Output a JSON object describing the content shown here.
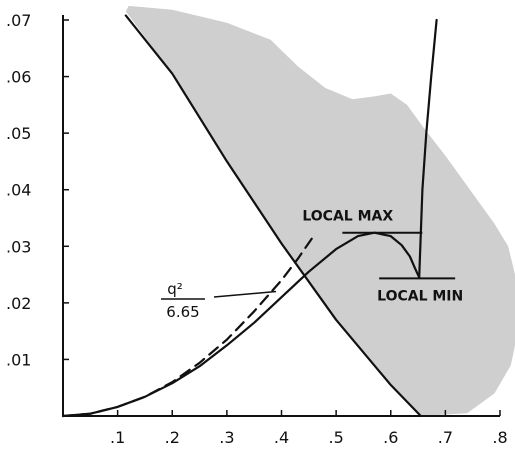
{
  "chart_data": {
    "type": "line",
    "title": "",
    "xlabel": "",
    "ylabel": "",
    "xlim": [
      0,
      0.8
    ],
    "ylim": [
      0,
      0.07
    ],
    "grid": false,
    "x_ticks": [
      ".1",
      ".2",
      ".3",
      ".4",
      ".5",
      ".6",
      ".7",
      ".8"
    ],
    "y_ticks": [
      ".01",
      ".02",
      ".03",
      ".04",
      ".05",
      ".06",
      ".07"
    ],
    "shaded_region": {
      "color": "#cfcfcf",
      "points": [
        [
          0.12,
          0.0725
        ],
        [
          0.2,
          0.0718
        ],
        [
          0.3,
          0.0695
        ],
        [
          0.38,
          0.0665
        ],
        [
          0.43,
          0.0618
        ],
        [
          0.48,
          0.058
        ],
        [
          0.53,
          0.056
        ],
        [
          0.57,
          0.0565
        ],
        [
          0.6,
          0.057
        ],
        [
          0.63,
          0.055
        ],
        [
          0.66,
          0.051
        ],
        [
          0.7,
          0.046
        ],
        [
          0.73,
          0.042
        ],
        [
          0.76,
          0.038
        ],
        [
          0.79,
          0.034
        ],
        [
          0.815,
          0.03
        ],
        [
          0.835,
          0.022
        ],
        [
          0.835,
          0.016
        ],
        [
          0.82,
          0.009
        ],
        [
          0.79,
          0.004
        ],
        [
          0.74,
          0.0005
        ],
        [
          0.655,
          0
        ],
        [
          0.6,
          0.0055
        ],
        [
          0.5,
          0.017
        ],
        [
          0.4,
          0.0305
        ],
        [
          0.3,
          0.045
        ],
        [
          0.2,
          0.0605
        ],
        [
          0.115,
          0.0715
        ]
      ]
    },
    "series": [
      {
        "style": "solid",
        "points": [
          [
            0.115,
            0.0708
          ],
          [
            0.2,
            0.0605
          ],
          [
            0.3,
            0.045
          ],
          [
            0.4,
            0.0305
          ],
          [
            0.5,
            0.017
          ],
          [
            0.6,
            0.0055
          ],
          [
            0.655,
            0
          ]
        ]
      },
      {
        "style": "dashed",
        "points": [
          [
            0.0,
            0.0
          ],
          [
            0.05,
            0.0004
          ],
          [
            0.1,
            0.0016
          ],
          [
            0.15,
            0.0034
          ],
          [
            0.2,
            0.006
          ],
          [
            0.25,
            0.0094
          ],
          [
            0.3,
            0.0135
          ],
          [
            0.35,
            0.0185
          ],
          [
            0.4,
            0.024
          ],
          [
            0.43,
            0.0278
          ],
          [
            0.46,
            0.032
          ]
        ]
      },
      {
        "style": "solid",
        "points": [
          [
            0.0,
            0.0
          ],
          [
            0.05,
            0.0004
          ],
          [
            0.1,
            0.0016
          ],
          [
            0.15,
            0.0034
          ],
          [
            0.2,
            0.0058
          ],
          [
            0.25,
            0.0088
          ],
          [
            0.3,
            0.0125
          ],
          [
            0.35,
            0.0165
          ],
          [
            0.4,
            0.021
          ],
          [
            0.45,
            0.0255
          ],
          [
            0.5,
            0.0295
          ],
          [
            0.54,
            0.0318
          ],
          [
            0.57,
            0.0324
          ],
          [
            0.6,
            0.0318
          ],
          [
            0.62,
            0.0302
          ],
          [
            0.635,
            0.0282
          ],
          [
            0.645,
            0.026
          ],
          [
            0.652,
            0.0245
          ]
        ]
      },
      {
        "style": "solid",
        "points": [
          [
            0.652,
            0.0245
          ],
          [
            0.658,
            0.04
          ],
          [
            0.665,
            0.05
          ],
          [
            0.674,
            0.06
          ],
          [
            0.684,
            0.07
          ]
        ]
      }
    ],
    "annotations": {
      "local_max": {
        "label": "LOCAL MAX",
        "x": 0.57,
        "y": 0.0324
      },
      "local_min": {
        "label": "LOCAL MIN",
        "x": 0.652,
        "y": 0.0245
      },
      "formula": {
        "numerator": "q²",
        "denominator": "6.65",
        "arrow_to": [
          0.39,
          0.022
        ]
      }
    }
  }
}
